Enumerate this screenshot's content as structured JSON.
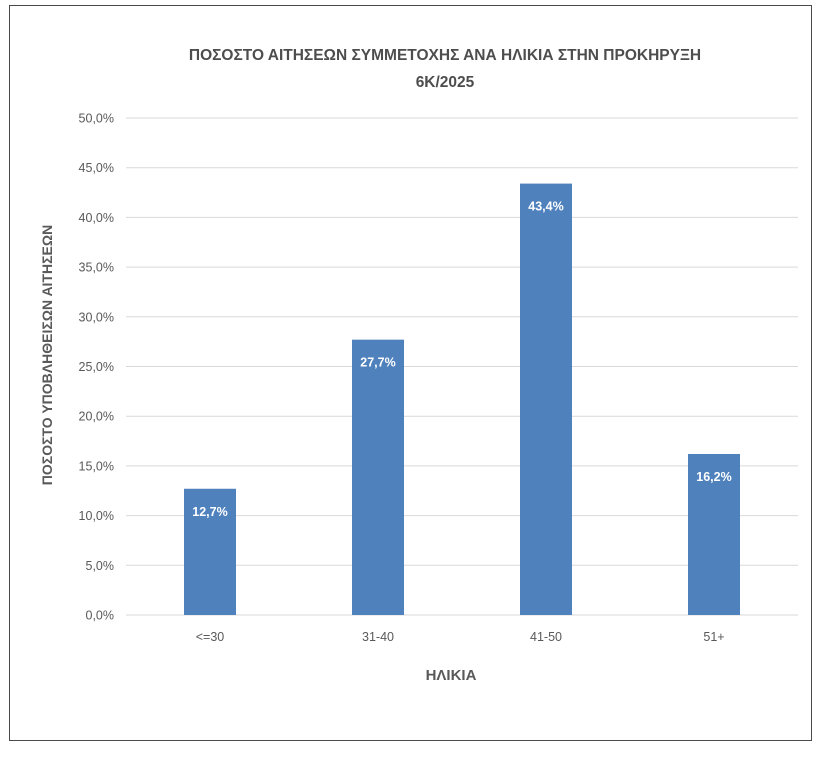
{
  "chart_data": {
    "type": "bar",
    "title": "ΠΟΣΟΣΤΟ ΑΙΤΗΣΕΩΝ ΣΥΜΜΕΤΟΧΗΣ ΑΝΑ ΗΛΙΚΙΑ ΣΤΗΝ ΠΡΟΚΗΡΥΞΗ",
    "subtitle": "6Κ/2025",
    "xlabel": "ΗΛΙΚΙΑ",
    "ylabel": "ΠΟΣΟΣΤΟ ΥΠΟΒΛΗΘΕΙΣΩΝ ΑΙΤΗΣΕΩΝ",
    "categories": [
      "<=30",
      "31-40",
      "41-50",
      "51+"
    ],
    "values": [
      12.7,
      27.7,
      43.4,
      16.2
    ],
    "data_labels": [
      "12,7%",
      "27,7%",
      "43,4%",
      "16,2%"
    ],
    "ylim": [
      0,
      50
    ],
    "yticks": [
      "0,0%",
      "5,0%",
      "10,0%",
      "15,0%",
      "20,0%",
      "25,0%",
      "30,0%",
      "35,0%",
      "40,0%",
      "45,0%",
      "50,0%"
    ],
    "grid": true,
    "legend": "none",
    "colors": {
      "bar": "#4f81bd",
      "grid": "#d9d9d9",
      "text": "#595959",
      "label": "#ffffff"
    }
  }
}
